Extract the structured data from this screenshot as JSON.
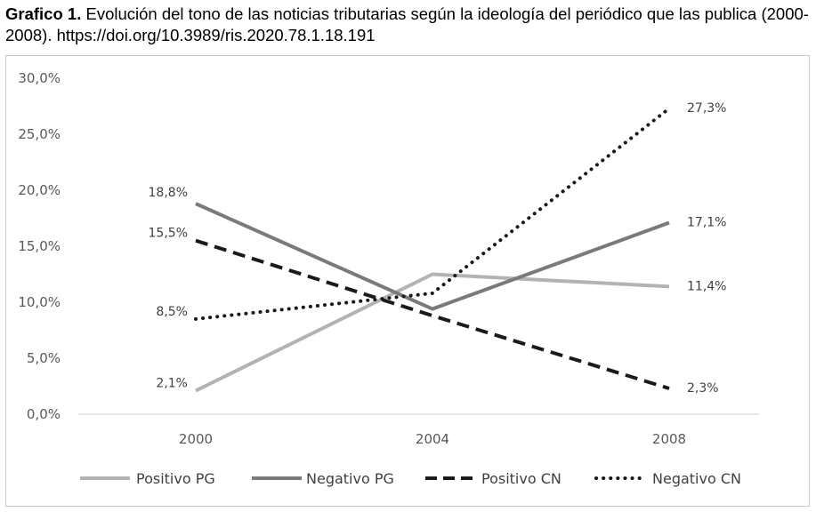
{
  "caption": {
    "label": "Grafico 1.",
    "text": "Evolución del tono de las noticias tributarias según la ideología del periódico que las publica (2000-2008). https://doi.org/10.3989/ris.2020.78.1.18.191"
  },
  "chart_data": {
    "type": "line",
    "x": [
      "2000",
      "2004",
      "2008"
    ],
    "y_ticks": [
      "0,0%",
      "5,0%",
      "10,0%",
      "15,0%",
      "20,0%",
      "25,0%",
      "30,0%"
    ],
    "ylim": [
      0,
      30
    ],
    "grid": false,
    "legend_position": "bottom",
    "series": [
      {
        "name": "Positivo PG",
        "values": [
          2.1,
          12.5,
          11.4
        ],
        "labels": [
          "2,1%",
          "",
          "11,4%"
        ],
        "color": "#b3b3b3",
        "style": "solid"
      },
      {
        "name": "Negativo PG",
        "values": [
          18.8,
          9.4,
          17.1
        ],
        "labels": [
          "18,8%",
          "",
          "17,1%"
        ],
        "color": "#7a7a7a",
        "style": "solid"
      },
      {
        "name": "Positivo CN",
        "values": [
          15.5,
          8.8,
          2.3
        ],
        "labels": [
          "15,5%",
          "",
          "2,3%"
        ],
        "color": "#1a1a1a",
        "style": "dashed"
      },
      {
        "name": "Negativo CN",
        "values": [
          8.5,
          10.8,
          27.3
        ],
        "labels": [
          "8,5%",
          "",
          "27,3%"
        ],
        "color": "#1a1a1a",
        "style": "dotted"
      }
    ]
  }
}
